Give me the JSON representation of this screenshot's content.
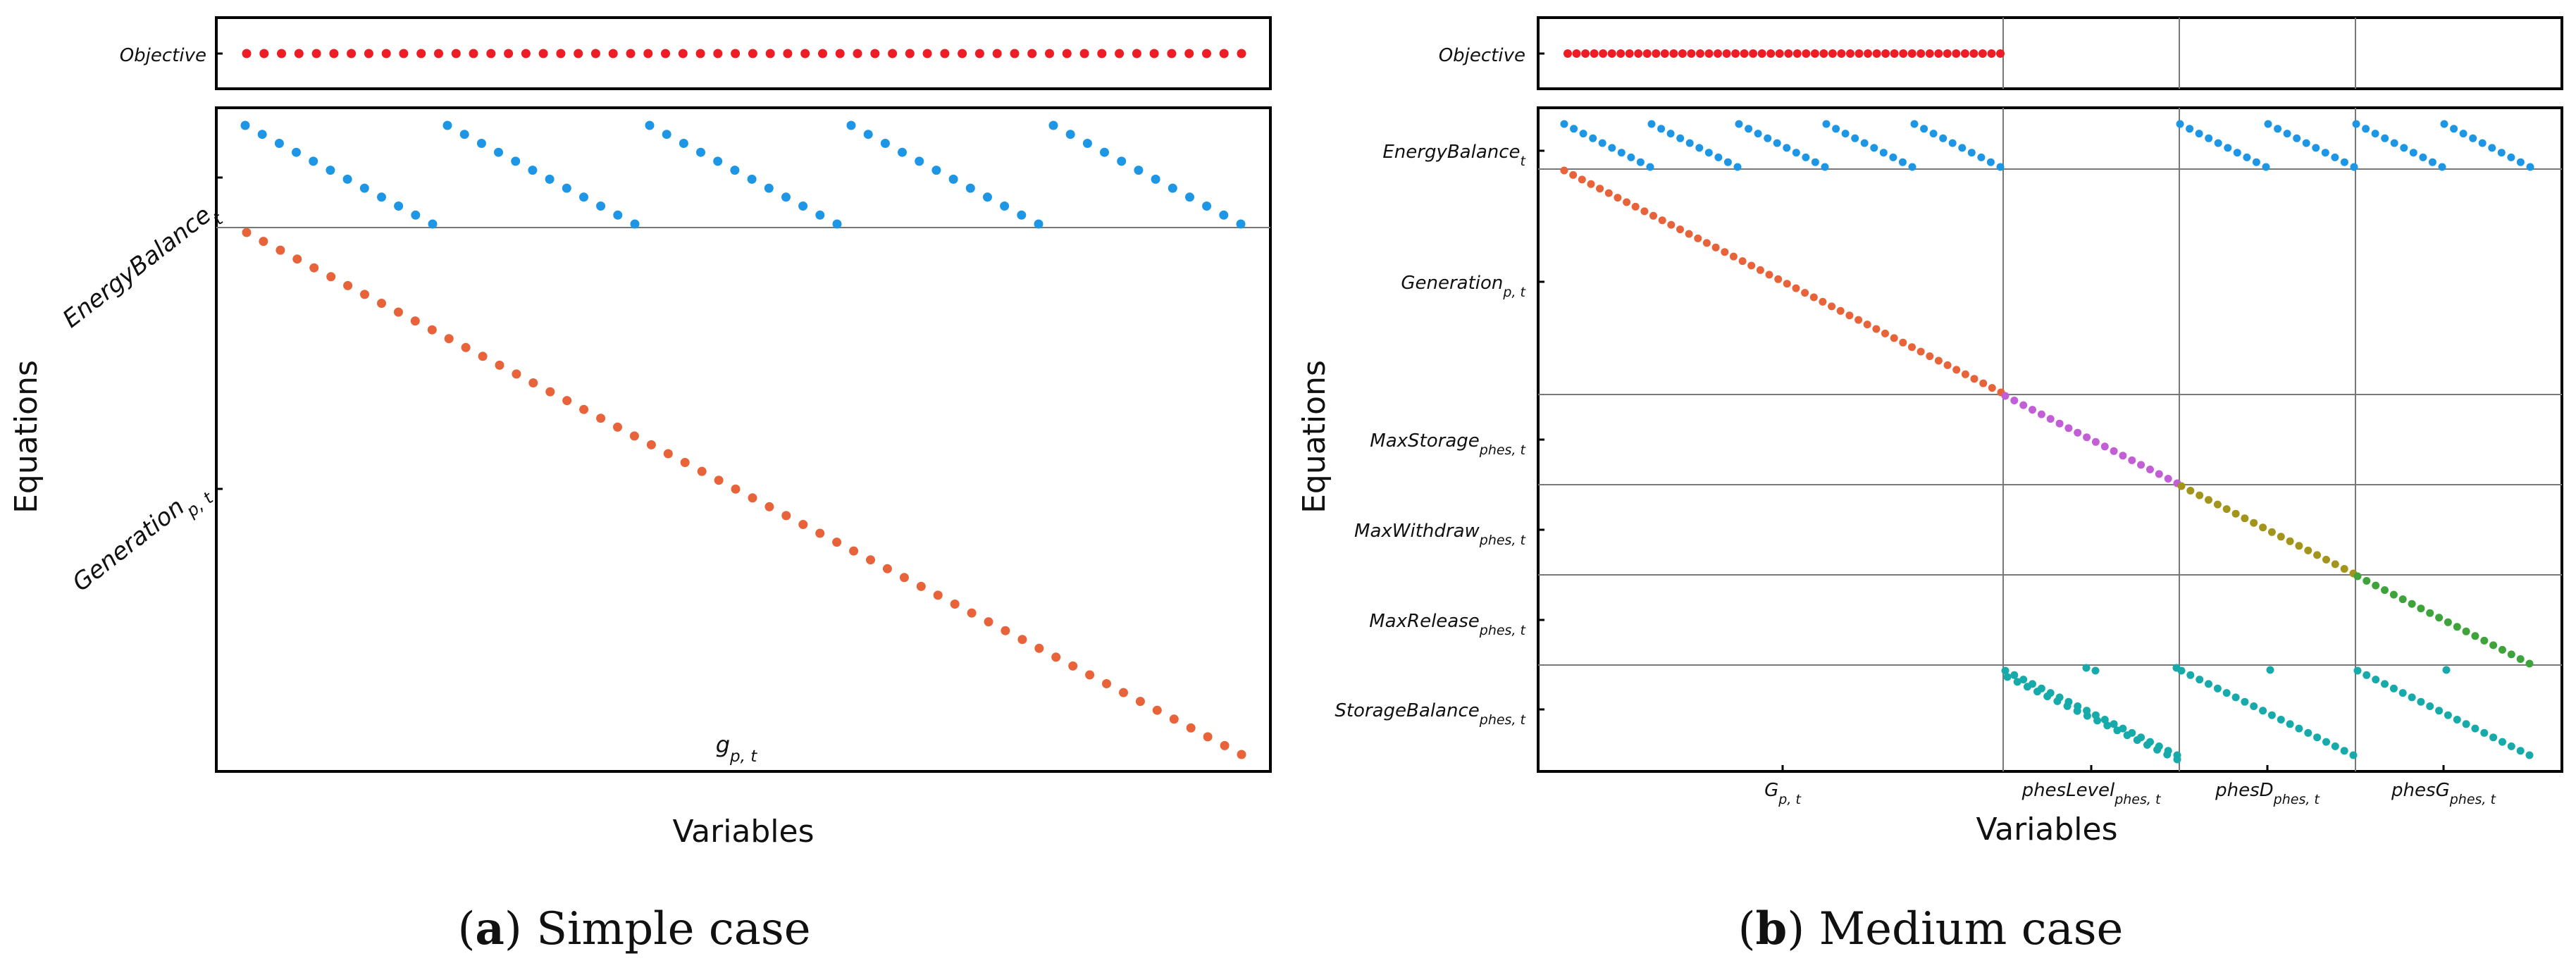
{
  "chart_data": [
    {
      "type": "scatter",
      "subtitle_prefix": "a",
      "subtitle": "Simple case",
      "xlabel": "Variables",
      "ylabel": "Equations",
      "objective": {
        "label": "Objective",
        "color": "#ee1c25",
        "x_range": [
          1,
          120
        ],
        "points": 58
      },
      "x_groups": [
        {
          "label": "g",
          "sub": "p, t",
          "range": [
            1,
            120
          ]
        }
      ],
      "row_groups": [
        {
          "label": "EnergyBalance",
          "sub": "t",
          "rows": 12
        },
        {
          "label": "Generation",
          "sub": "p, t",
          "rows": 60
        }
      ],
      "series": [
        {
          "name": "EnergyBalance_t",
          "color": "#1e96e6",
          "blocks": 5,
          "points_per_block": 12
        },
        {
          "name": "Generation_p,t",
          "color": "#e8623a",
          "points": 60
        }
      ]
    },
    {
      "type": "scatter",
      "subtitle_prefix": "b",
      "subtitle": "Medium case",
      "xlabel": "Variables",
      "ylabel": "Equations",
      "objective": {
        "label": "Objective",
        "color": "#ee1c25",
        "x_range": [
          1,
          50
        ],
        "points": 50
      },
      "x_groups": [
        {
          "label": "G",
          "sub": "p, t",
          "range": [
            1,
            50
          ]
        },
        {
          "label": "phesLevel",
          "sub": "phes, t",
          "range": [
            51,
            70
          ]
        },
        {
          "label": "phesD",
          "sub": "phes, t",
          "range": [
            71,
            90
          ]
        },
        {
          "label": "phesG",
          "sub": "phes, t",
          "range": [
            91,
            110
          ]
        }
      ],
      "row_groups": [
        {
          "label": "EnergyBalance",
          "sub": "t",
          "rows": 10
        },
        {
          "label": "Generation",
          "sub": "p, t",
          "rows": 50
        },
        {
          "label": "MaxStorage",
          "sub": "phes, t",
          "rows": 20
        },
        {
          "label": "MaxWithdraw",
          "sub": "phes, t",
          "rows": 20
        },
        {
          "label": "MaxRelease",
          "sub": "phes, t",
          "rows": 20
        },
        {
          "label": "StorageBalance",
          "sub": "phes, t",
          "rows": 20
        }
      ],
      "series": [
        {
          "name": "EnergyBalance_t",
          "color": "#1e96e6"
        },
        {
          "name": "Generation_p,t",
          "color": "#e8623a"
        },
        {
          "name": "MaxStorage_phes,t",
          "color": "#c25ed6"
        },
        {
          "name": "MaxWithdraw_phes,t",
          "color": "#a3951c"
        },
        {
          "name": "MaxRelease_phes,t",
          "color": "#3ea33a"
        },
        {
          "name": "StorageBalance_phes,t",
          "color": "#16aaaa"
        }
      ]
    }
  ]
}
